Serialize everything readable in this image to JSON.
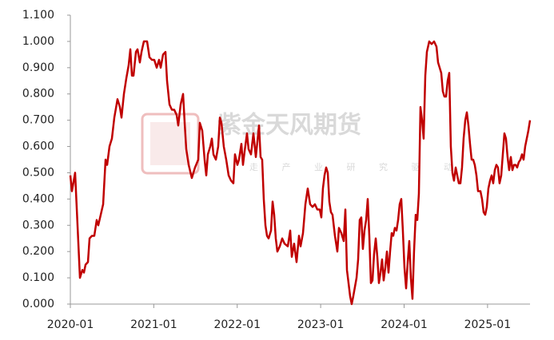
{
  "chart_data": {
    "type": "line",
    "watermark": "紫金天风期货",
    "watermark_subtitle": "走 产 业 研 究 驱 动",
    "xlim": [
      2020,
      2025.509
    ],
    "xticks": [
      {
        "value": 2020,
        "label": "2020-01"
      },
      {
        "value": 2021,
        "label": "2021-01"
      },
      {
        "value": 2022,
        "label": "2022-01"
      },
      {
        "value": 2023,
        "label": "2023-01"
      },
      {
        "value": 2024,
        "label": "2024-01"
      },
      {
        "value": 2025,
        "label": "2025-01"
      }
    ],
    "ylim": [
      0,
      1.1
    ],
    "yticks": [
      {
        "value": 0,
        "label": "0.000"
      },
      {
        "value": 0.1,
        "label": "0.100"
      },
      {
        "value": 0.2,
        "label": "0.200"
      },
      {
        "value": 0.3,
        "label": "0.300"
      },
      {
        "value": 0.4,
        "label": "0.400"
      },
      {
        "value": 0.5,
        "label": "0.500"
      },
      {
        "value": 0.6,
        "label": "0.600"
      },
      {
        "value": 0.7,
        "label": "0.700"
      },
      {
        "value": 0.8,
        "label": "0.800"
      },
      {
        "value": 0.9,
        "label": "0.900"
      },
      {
        "value": 1.0,
        "label": "1.000"
      },
      {
        "value": 1.1,
        "label": "1.100"
      }
    ],
    "grid": false,
    "color": "#c00000",
    "x": [
      2020.0,
      2020.019,
      2020.057,
      2020.086,
      2020.115,
      2020.144,
      2020.163,
      2020.182,
      2020.211,
      2020.23,
      2020.259,
      2020.287,
      2020.316,
      2020.335,
      2020.364,
      2020.393,
      2020.422,
      2020.441,
      2020.469,
      2020.498,
      2020.527,
      2020.565,
      2020.594,
      2020.613,
      2020.642,
      2020.671,
      2020.699,
      2020.719,
      2020.738,
      2020.757,
      2020.786,
      2020.805,
      2020.833,
      2020.853,
      2020.881,
      2020.92,
      2020.948,
      2020.977,
      2021.006,
      2021.035,
      2021.063,
      2021.083,
      2021.111,
      2021.14,
      2021.159,
      2021.188,
      2021.217,
      2021.245,
      2021.274,
      2021.293,
      2021.322,
      2021.351,
      2021.37,
      2021.389,
      2021.418,
      2021.456,
      2021.494,
      2021.533,
      2021.552,
      2021.581,
      2021.609,
      2021.629,
      2021.648,
      2021.677,
      2021.696,
      2021.715,
      2021.744,
      2021.772,
      2021.792,
      2021.811,
      2021.839,
      2021.868,
      2021.897,
      2021.926,
      2021.954,
      2021.973,
      2022.002,
      2022.021,
      2022.05,
      2022.069,
      2022.088,
      2022.117,
      2022.136,
      2022.165,
      2022.194,
      2022.223,
      2022.242,
      2022.261,
      2022.28,
      2022.299,
      2022.318,
      2022.338,
      2022.357,
      2022.376,
      2022.405,
      2022.424,
      2022.443,
      2022.462,
      2022.481,
      2022.51,
      2022.539,
      2022.567,
      2022.606,
      2022.635,
      2022.654,
      2022.682,
      2022.711,
      2022.74,
      2022.759,
      2022.788,
      2022.817,
      2022.845,
      2022.874,
      2022.903,
      2022.931,
      2022.96,
      2022.989,
      2023.008,
      2023.027,
      2023.046,
      2023.066,
      2023.085,
      2023.104,
      2023.123,
      2023.142,
      2023.171,
      2023.2,
      2023.219,
      2023.248,
      2023.276,
      2023.296,
      2023.315,
      2023.334,
      2023.353,
      2023.372,
      2023.391,
      2023.43,
      2023.449,
      2023.468,
      2023.487,
      2023.506,
      2023.525,
      2023.545,
      2023.564,
      2023.583,
      2023.602,
      2023.621,
      2023.64,
      2023.66,
      2023.679,
      2023.698,
      2023.717,
      2023.736,
      2023.755,
      2023.775,
      2023.794,
      2023.813,
      2023.832,
      2023.851,
      2023.87,
      2023.889,
      2023.909,
      2023.928,
      2023.947,
      2023.966,
      2023.985,
      2024.004,
      2024.024,
      2024.043,
      2024.062,
      2024.081,
      2024.1,
      2024.119,
      2024.139,
      2024.158,
      2024.177,
      2024.196,
      2024.215,
      2024.234,
      2024.254,
      2024.273,
      2024.301,
      2024.33,
      2024.359,
      2024.388,
      2024.407,
      2024.426,
      2024.445,
      2024.464,
      2024.483,
      2024.503,
      2024.522,
      2024.541,
      2024.56,
      2024.579,
      2024.598,
      2024.618,
      2024.637,
      2024.656,
      2024.675,
      2024.694,
      2024.713,
      2024.733,
      2024.752,
      2024.771,
      2024.79,
      2024.809,
      2024.828,
      2024.847,
      2024.867,
      2024.886,
      2024.915,
      2024.934,
      2024.953,
      2024.972,
      2024.991,
      2025.01,
      2025.03,
      2025.049,
      2025.068,
      2025.087,
      2025.106,
      2025.125,
      2025.144,
      2025.164,
      2025.183,
      2025.202,
      2025.221,
      2025.24,
      2025.259,
      2025.279,
      2025.298,
      2025.317,
      2025.336,
      2025.355,
      2025.374,
      2025.394,
      2025.413,
      2025.432,
      2025.451,
      2025.47,
      2025.489,
      2025.509
    ],
    "values": [
      0.49,
      0.43,
      0.5,
      0.3,
      0.1,
      0.13,
      0.12,
      0.15,
      0.16,
      0.25,
      0.26,
      0.26,
      0.32,
      0.3,
      0.34,
      0.38,
      0.55,
      0.53,
      0.6,
      0.63,
      0.71,
      0.78,
      0.75,
      0.71,
      0.8,
      0.86,
      0.91,
      0.97,
      0.87,
      0.87,
      0.96,
      0.97,
      0.92,
      0.96,
      1.0,
      1.0,
      0.94,
      0.93,
      0.93,
      0.9,
      0.93,
      0.9,
      0.95,
      0.96,
      0.85,
      0.76,
      0.74,
      0.74,
      0.72,
      0.68,
      0.76,
      0.8,
      0.69,
      0.59,
      0.53,
      0.48,
      0.52,
      0.55,
      0.69,
      0.66,
      0.55,
      0.49,
      0.57,
      0.6,
      0.63,
      0.57,
      0.55,
      0.6,
      0.71,
      0.69,
      0.6,
      0.55,
      0.49,
      0.47,
      0.46,
      0.57,
      0.53,
      0.55,
      0.61,
      0.53,
      0.58,
      0.65,
      0.59,
      0.57,
      0.65,
      0.56,
      0.62,
      0.68,
      0.56,
      0.55,
      0.4,
      0.3,
      0.26,
      0.25,
      0.28,
      0.39,
      0.34,
      0.25,
      0.2,
      0.22,
      0.25,
      0.23,
      0.22,
      0.28,
      0.18,
      0.23,
      0.16,
      0.26,
      0.22,
      0.27,
      0.38,
      0.44,
      0.38,
      0.37,
      0.38,
      0.36,
      0.36,
      0.33,
      0.44,
      0.49,
      0.52,
      0.5,
      0.39,
      0.35,
      0.34,
      0.26,
      0.2,
      0.29,
      0.27,
      0.24,
      0.36,
      0.13,
      0.08,
      0.03,
      0.0,
      0.03,
      0.1,
      0.17,
      0.32,
      0.33,
      0.21,
      0.28,
      0.32,
      0.4,
      0.26,
      0.08,
      0.09,
      0.19,
      0.25,
      0.18,
      0.08,
      0.12,
      0.17,
      0.09,
      0.14,
      0.2,
      0.12,
      0.2,
      0.27,
      0.26,
      0.29,
      0.28,
      0.32,
      0.38,
      0.4,
      0.28,
      0.14,
      0.06,
      0.16,
      0.24,
      0.1,
      0.02,
      0.2,
      0.34,
      0.32,
      0.42,
      0.75,
      0.7,
      0.63,
      0.87,
      0.96,
      1.0,
      0.99,
      1.0,
      0.98,
      0.92,
      0.9,
      0.88,
      0.81,
      0.79,
      0.79,
      0.85,
      0.88,
      0.6,
      0.5,
      0.47,
      0.52,
      0.49,
      0.46,
      0.46,
      0.52,
      0.63,
      0.7,
      0.73,
      0.68,
      0.61,
      0.55,
      0.55,
      0.53,
      0.49,
      0.43,
      0.43,
      0.4,
      0.35,
      0.34,
      0.37,
      0.44,
      0.47,
      0.49,
      0.46,
      0.51,
      0.53,
      0.52,
      0.46,
      0.49,
      0.57,
      0.65,
      0.63,
      0.56,
      0.51,
      0.56,
      0.51,
      0.53,
      0.53,
      0.52,
      0.54,
      0.55,
      0.57,
      0.55,
      0.6,
      0.63,
      0.66,
      0.7
    ]
  }
}
